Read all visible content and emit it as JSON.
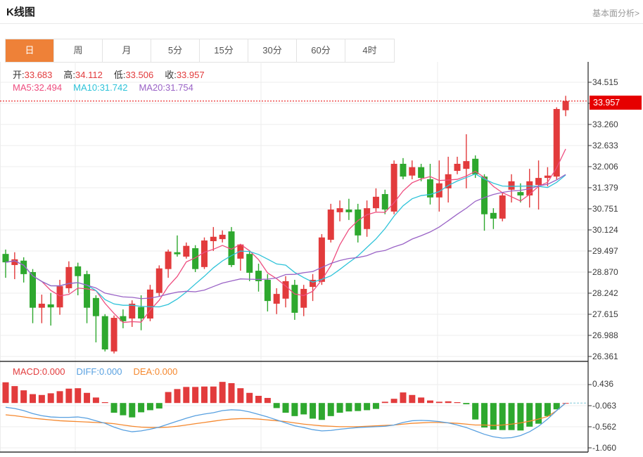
{
  "header": {
    "title": "K线图",
    "link_label": "基本面分析>"
  },
  "tabs": {
    "selected_index": 0,
    "items": [
      "日",
      "周",
      "月",
      "5分",
      "15分",
      "30分",
      "60分",
      "4时"
    ]
  },
  "indicator_rows": {
    "ohlc": [
      {
        "label": "开:",
        "value": "33.683",
        "label_color": "#333333",
        "value_color": "#e23b3c"
      },
      {
        "label": "高:",
        "value": "34.112",
        "label_color": "#333333",
        "value_color": "#e23b3c"
      },
      {
        "label": "低:",
        "value": "33.506",
        "label_color": "#333333",
        "value_color": "#e23b3c"
      },
      {
        "label": "收:",
        "value": "33.957",
        "label_color": "#333333",
        "value_color": "#e23b3c"
      }
    ],
    "ma": [
      {
        "label": "MA5:",
        "value": "32.494",
        "label_color": "#ee4d7f",
        "value_color": "#ee4d7f"
      },
      {
        "label": "MA10:",
        "value": "31.742",
        "label_color": "#2ec3d9",
        "value_color": "#2ec3d9"
      },
      {
        "label": "MA20:",
        "value": "31.754",
        "label_color": "#9a63c6",
        "value_color": "#9a63c6"
      }
    ],
    "macd": [
      {
        "label": "MACD:",
        "value": "0.000",
        "label_color": "#e23b3c",
        "value_color": "#e23b3c"
      },
      {
        "label": "DIFF:",
        "value": "0.000",
        "label_color": "#58a0e0",
        "value_color": "#58a0e0"
      },
      {
        "label": "DEA:",
        "value": "0.000",
        "label_color": "#f5882e",
        "value_color": "#f5882e"
      }
    ]
  },
  "price_axis": {
    "current_price": "33.957",
    "badge_color": "#e60000"
  },
  "chart_data": [
    {
      "type": "candlestick",
      "title": "K线图",
      "interval_selected": "日",
      "up_color": "#e23b3c",
      "down_color": "#2ea82e",
      "current_price": 33.957,
      "y_axis": {
        "top_value": 34.515,
        "step": 0.62723,
        "tick_labels": [
          "34.515",
          "33.260",
          "32.633",
          "32.006",
          "31.379",
          "30.751",
          "30.124",
          "29.497",
          "28.870",
          "28.242",
          "27.615",
          "26.988",
          "26.361"
        ]
      },
      "ma_lines": [
        {
          "period": 5,
          "color": "#ee4d7f",
          "last_value": 32.494
        },
        {
          "period": 10,
          "color": "#2ec3d9",
          "last_value": 31.742
        },
        {
          "period": 20,
          "color": "#9a63c6",
          "last_value": 31.754
        }
      ],
      "ohlc_last": {
        "open": 33.683,
        "high": 34.112,
        "low": 33.506,
        "close": 33.957
      },
      "candles": [
        [
          29.41,
          29.54,
          28.7,
          29.16
        ],
        [
          29.08,
          29.46,
          28.66,
          29.25
        ],
        [
          29.21,
          29.31,
          28.56,
          28.81
        ],
        [
          28.87,
          28.96,
          27.35,
          27.81
        ],
        [
          27.81,
          28.2,
          27.35,
          27.93
        ],
        [
          27.91,
          28.25,
          27.28,
          27.82
        ],
        [
          27.82,
          28.64,
          27.6,
          28.45
        ],
        [
          28.39,
          29.19,
          28.25,
          29.02
        ],
        [
          29.04,
          29.15,
          28.18,
          28.75
        ],
        [
          28.81,
          28.91,
          27.35,
          27.81
        ],
        [
          28.1,
          28.18,
          26.78,
          27.56
        ],
        [
          27.56,
          27.62,
          26.51,
          26.57
        ],
        [
          26.51,
          27.58,
          26.45,
          27.51
        ],
        [
          27.56,
          27.76,
          27.2,
          27.41
        ],
        [
          27.49,
          28.03,
          27.24,
          27.93
        ],
        [
          27.83,
          28.18,
          27.14,
          27.49
        ],
        [
          27.49,
          28.49,
          27.41,
          28.35
        ],
        [
          28.25,
          29.07,
          28.16,
          28.98
        ],
        [
          28.96,
          29.54,
          28.7,
          29.48
        ],
        [
          29.46,
          29.96,
          29.33,
          29.4
        ],
        [
          29.33,
          29.75,
          29.27,
          29.65
        ],
        [
          29.58,
          29.67,
          28.87,
          28.96
        ],
        [
          29.02,
          29.9,
          28.96,
          29.81
        ],
        [
          29.79,
          30.21,
          29.5,
          29.92
        ],
        [
          29.85,
          30.11,
          29.75,
          29.98
        ],
        [
          30.08,
          30.21,
          29.02,
          29.08
        ],
        [
          29.27,
          29.71,
          28.91,
          29.69
        ],
        [
          29.41,
          29.52,
          28.6,
          28.85
        ],
        [
          28.91,
          29.12,
          28.29,
          28.6
        ],
        [
          28.64,
          28.81,
          27.7,
          28.01
        ],
        [
          27.93,
          28.39,
          27.62,
          28.22
        ],
        [
          28.08,
          28.75,
          27.82,
          28.6
        ],
        [
          28.49,
          28.64,
          27.45,
          27.66
        ],
        [
          27.81,
          28.49,
          27.56,
          28.37
        ],
        [
          28.43,
          28.81,
          28.01,
          28.64
        ],
        [
          28.58,
          30.0,
          28.49,
          29.9
        ],
        [
          29.83,
          30.9,
          29.75,
          30.73
        ],
        [
          30.65,
          31.0,
          30.38,
          30.77
        ],
        [
          30.73,
          31.05,
          30.42,
          30.65
        ],
        [
          30.73,
          30.9,
          29.75,
          29.96
        ],
        [
          30.15,
          31.0,
          29.92,
          30.77
        ],
        [
          30.77,
          31.36,
          30.67,
          31.11
        ],
        [
          31.19,
          31.32,
          30.59,
          30.73
        ],
        [
          30.67,
          32.19,
          30.59,
          32.09
        ],
        [
          32.09,
          32.26,
          31.63,
          31.71
        ],
        [
          31.74,
          32.19,
          31.63,
          31.99
        ],
        [
          31.99,
          32.09,
          31.57,
          31.67
        ],
        [
          31.63,
          32.09,
          30.88,
          31.09
        ],
        [
          31.09,
          32.19,
          30.67,
          31.51
        ],
        [
          31.36,
          32.3,
          30.94,
          31.78
        ],
        [
          31.88,
          32.3,
          31.78,
          32.09
        ],
        [
          31.94,
          32.97,
          31.36,
          32.17
        ],
        [
          32.24,
          32.34,
          31.67,
          31.78
        ],
        [
          31.71,
          31.78,
          30.1,
          30.59
        ],
        [
          30.63,
          30.77,
          30.15,
          30.46
        ],
        [
          30.46,
          31.25,
          30.38,
          31.15
        ],
        [
          31.32,
          31.78,
          30.94,
          31.57
        ],
        [
          31.25,
          31.51,
          30.94,
          31.15
        ],
        [
          31.15,
          31.94,
          30.79,
          31.57
        ],
        [
          31.46,
          32.19,
          30.73,
          31.67
        ],
        [
          31.67,
          31.99,
          31.42,
          31.74
        ],
        [
          31.71,
          33.77,
          31.63,
          33.72
        ],
        [
          33.683,
          34.112,
          33.506,
          33.957
        ]
      ]
    },
    {
      "type": "bar",
      "name": "MACD",
      "positive_color": "#e23b3c",
      "negative_color": "#2ea82e",
      "y_axis": {
        "tick_labels": [
          "0.436",
          "-0.063",
          "-0.562",
          "-1.060"
        ],
        "step": 0.499
      },
      "last_values": {
        "macd": "0.000",
        "diff": "0.000",
        "dea": "0.000"
      },
      "histogram": [
        0.49,
        0.4,
        0.3,
        0.21,
        0.19,
        0.23,
        0.28,
        0.34,
        0.35,
        0.24,
        0.13,
        0.02,
        -0.23,
        -0.29,
        -0.34,
        -0.22,
        -0.17,
        -0.13,
        0.26,
        0.33,
        0.38,
        0.38,
        0.39,
        0.39,
        0.5,
        0.47,
        0.35,
        0.24,
        0.17,
        0.12,
        -0.12,
        -0.23,
        -0.31,
        -0.27,
        -0.37,
        -0.4,
        -0.31,
        -0.23,
        -0.2,
        -0.19,
        -0.17,
        -0.14,
        0.03,
        0.1,
        0.25,
        0.19,
        0.13,
        0.06,
        0.03,
        0.04,
        0.02,
        -0.03,
        -0.39,
        -0.58,
        -0.63,
        -0.64,
        -0.64,
        -0.65,
        -0.56,
        -0.49,
        -0.31,
        -0.15,
        0.0
      ],
      "diff_line": {
        "color": "#58a0e0",
        "values": [
          -0.1,
          -0.13,
          -0.18,
          -0.25,
          -0.3,
          -0.33,
          -0.34,
          -0.34,
          -0.33,
          -0.36,
          -0.42,
          -0.48,
          -0.57,
          -0.64,
          -0.68,
          -0.66,
          -0.62,
          -0.57,
          -0.5,
          -0.43,
          -0.36,
          -0.3,
          -0.26,
          -0.23,
          -0.18,
          -0.16,
          -0.17,
          -0.21,
          -0.27,
          -0.33,
          -0.4,
          -0.47,
          -0.54,
          -0.58,
          -0.63,
          -0.66,
          -0.65,
          -0.62,
          -0.6,
          -0.58,
          -0.57,
          -0.56,
          -0.55,
          -0.52,
          -0.46,
          -0.42,
          -0.41,
          -0.42,
          -0.44,
          -0.47,
          -0.52,
          -0.58,
          -0.66,
          -0.74,
          -0.8,
          -0.83,
          -0.82,
          -0.77,
          -0.68,
          -0.55,
          -0.38,
          -0.18,
          0.0
        ]
      },
      "dea_line": {
        "color": "#f5882e",
        "values": [
          -0.28,
          -0.3,
          -0.33,
          -0.36,
          -0.38,
          -0.4,
          -0.42,
          -0.43,
          -0.44,
          -0.45,
          -0.46,
          -0.47,
          -0.49,
          -0.52,
          -0.55,
          -0.57,
          -0.58,
          -0.58,
          -0.57,
          -0.55,
          -0.52,
          -0.49,
          -0.46,
          -0.43,
          -0.4,
          -0.38,
          -0.37,
          -0.37,
          -0.38,
          -0.4,
          -0.42,
          -0.44,
          -0.47,
          -0.5,
          -0.52,
          -0.54,
          -0.55,
          -0.56,
          -0.56,
          -0.56,
          -0.55,
          -0.54,
          -0.53,
          -0.52,
          -0.5,
          -0.48,
          -0.47,
          -0.46,
          -0.46,
          -0.47,
          -0.48,
          -0.5,
          -0.52,
          -0.52,
          -0.53,
          -0.52,
          -0.5,
          -0.47,
          -0.43,
          -0.38,
          -0.32,
          -0.18,
          0.0
        ]
      }
    }
  ]
}
